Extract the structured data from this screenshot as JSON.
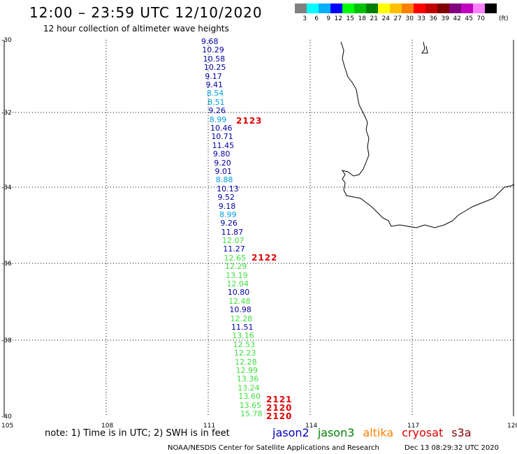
{
  "header": {
    "title": "12:00 – 23:59 UTC 12/10/2020",
    "subtitle": "12 hour collection of altimeter wave heights"
  },
  "legend": {
    "colors": [
      "#808080",
      "#00ffff",
      "#00b0ff",
      "#0000ff",
      "#00ff00",
      "#00c000",
      "#008000",
      "#ffff00",
      "#ffc000",
      "#ff8000",
      "#ff0000",
      "#c00000",
      "#800000",
      "#800080",
      "#c000c0",
      "#ff80ff",
      "#000000"
    ],
    "labels": [
      "3",
      "6",
      "9",
      "12",
      "15",
      "18",
      "21",
      "24",
      "27",
      "30",
      "33",
      "36",
      "39",
      "42",
      "45",
      "70"
    ],
    "unit": "(ft)"
  },
  "axes": {
    "lat_labels": [
      "-30",
      "-32",
      "-34",
      "-36",
      "-38",
      "-40"
    ],
    "lon_labels": [
      "105",
      "108",
      "111",
      "114",
      "117",
      "120"
    ]
  },
  "waves": [
    {
      "v": "9.68",
      "c": "#0000a0"
    },
    {
      "v": "10.29",
      "c": "#0000a0"
    },
    {
      "v": "10.58",
      "c": "#0000a0"
    },
    {
      "v": "10.25",
      "c": "#0000a0"
    },
    {
      "v": "9.17",
      "c": "#0000a0"
    },
    {
      "v": "9.41",
      "c": "#0000a0"
    },
    {
      "v": "8.54",
      "c": "#00a0e0"
    },
    {
      "v": "8.51",
      "c": "#00a0e0"
    },
    {
      "v": "9.26",
      "c": "#0000a0"
    },
    {
      "v": "8.99",
      "c": "#00a0e0"
    },
    {
      "v": "10.46",
      "c": "#0000a0"
    },
    {
      "v": "10.71",
      "c": "#0000a0"
    },
    {
      "v": "11.45",
      "c": "#0000a0"
    },
    {
      "v": "9.80",
      "c": "#0000a0"
    },
    {
      "v": "9.20",
      "c": "#0000a0"
    },
    {
      "v": "9.01",
      "c": "#0000a0"
    },
    {
      "v": "8.88",
      "c": "#00a0e0"
    },
    {
      "v": "10.13",
      "c": "#0000a0"
    },
    {
      "v": "9.52",
      "c": "#0000a0"
    },
    {
      "v": "9.18",
      "c": "#0000a0"
    },
    {
      "v": "8.99",
      "c": "#00a0e0"
    },
    {
      "v": "9.26",
      "c": "#0000a0"
    },
    {
      "v": "11.87",
      "c": "#0000a0"
    },
    {
      "v": "12.07",
      "c": "#40e040"
    },
    {
      "v": "11.27",
      "c": "#0000a0"
    },
    {
      "v": "12.65",
      "c": "#40e040"
    },
    {
      "v": "12.29",
      "c": "#40e040"
    },
    {
      "v": "13.19",
      "c": "#40e040"
    },
    {
      "v": "12.04",
      "c": "#40e040"
    },
    {
      "v": "10.80",
      "c": "#0000a0"
    },
    {
      "v": "12.48",
      "c": "#40e040"
    },
    {
      "v": "10.98",
      "c": "#0000a0"
    },
    {
      "v": "12.28",
      "c": "#40e040"
    },
    {
      "v": "11.51",
      "c": "#0000a0"
    },
    {
      "v": "13.16",
      "c": "#40e040"
    },
    {
      "v": "12.53",
      "c": "#40e040"
    },
    {
      "v": "12.23",
      "c": "#40e040"
    },
    {
      "v": "12.28",
      "c": "#40e040"
    },
    {
      "v": "12.99",
      "c": "#40e040"
    },
    {
      "v": "13.36",
      "c": "#40e040"
    },
    {
      "v": "13.24",
      "c": "#40e040"
    },
    {
      "v": "13.60",
      "c": "#40e040"
    },
    {
      "v": "13.65",
      "c": "#40e040"
    },
    {
      "v": "15.78",
      "c": "#40e040"
    }
  ],
  "passes": [
    "2123",
    "2122",
    "2121",
    "2120",
    "2120"
  ],
  "note": "note: 1) Time is in UTC; 2) SWH is in feet",
  "satellites": [
    {
      "name": "jason2",
      "color": "#0000c0"
    },
    {
      "name": "jason3",
      "color": "#008000"
    },
    {
      "name": "altika",
      "color": "#ff8000"
    },
    {
      "name": "cryosat",
      "color": "#e00000"
    },
    {
      "name": "s3a",
      "color": "#800000"
    }
  ],
  "footer": {
    "credit": "NOAA/NESDIS Center for Satellite Applications and Research",
    "timestamp": "Dec 13 08:29:32 UTC 2020"
  }
}
